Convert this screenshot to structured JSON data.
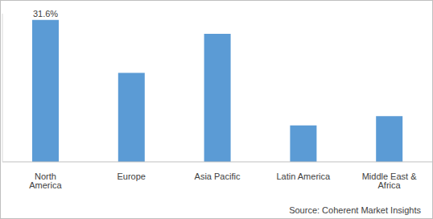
{
  "chart_data": {
    "type": "bar",
    "categories": [
      "North America",
      "Europe",
      "Asia Pacific",
      "Latin America",
      "Middle East & Africa"
    ],
    "values": [
      31.6,
      19.8,
      28.5,
      8.1,
      10.2
    ],
    "value_labels": [
      "31.6%",
      null,
      null,
      null,
      null
    ],
    "color": "#5b9bd5",
    "ylim": [
      0,
      33
    ],
    "tick_labels": "x",
    "annotations": [
      "Source: Coherent Market Insights"
    ]
  }
}
